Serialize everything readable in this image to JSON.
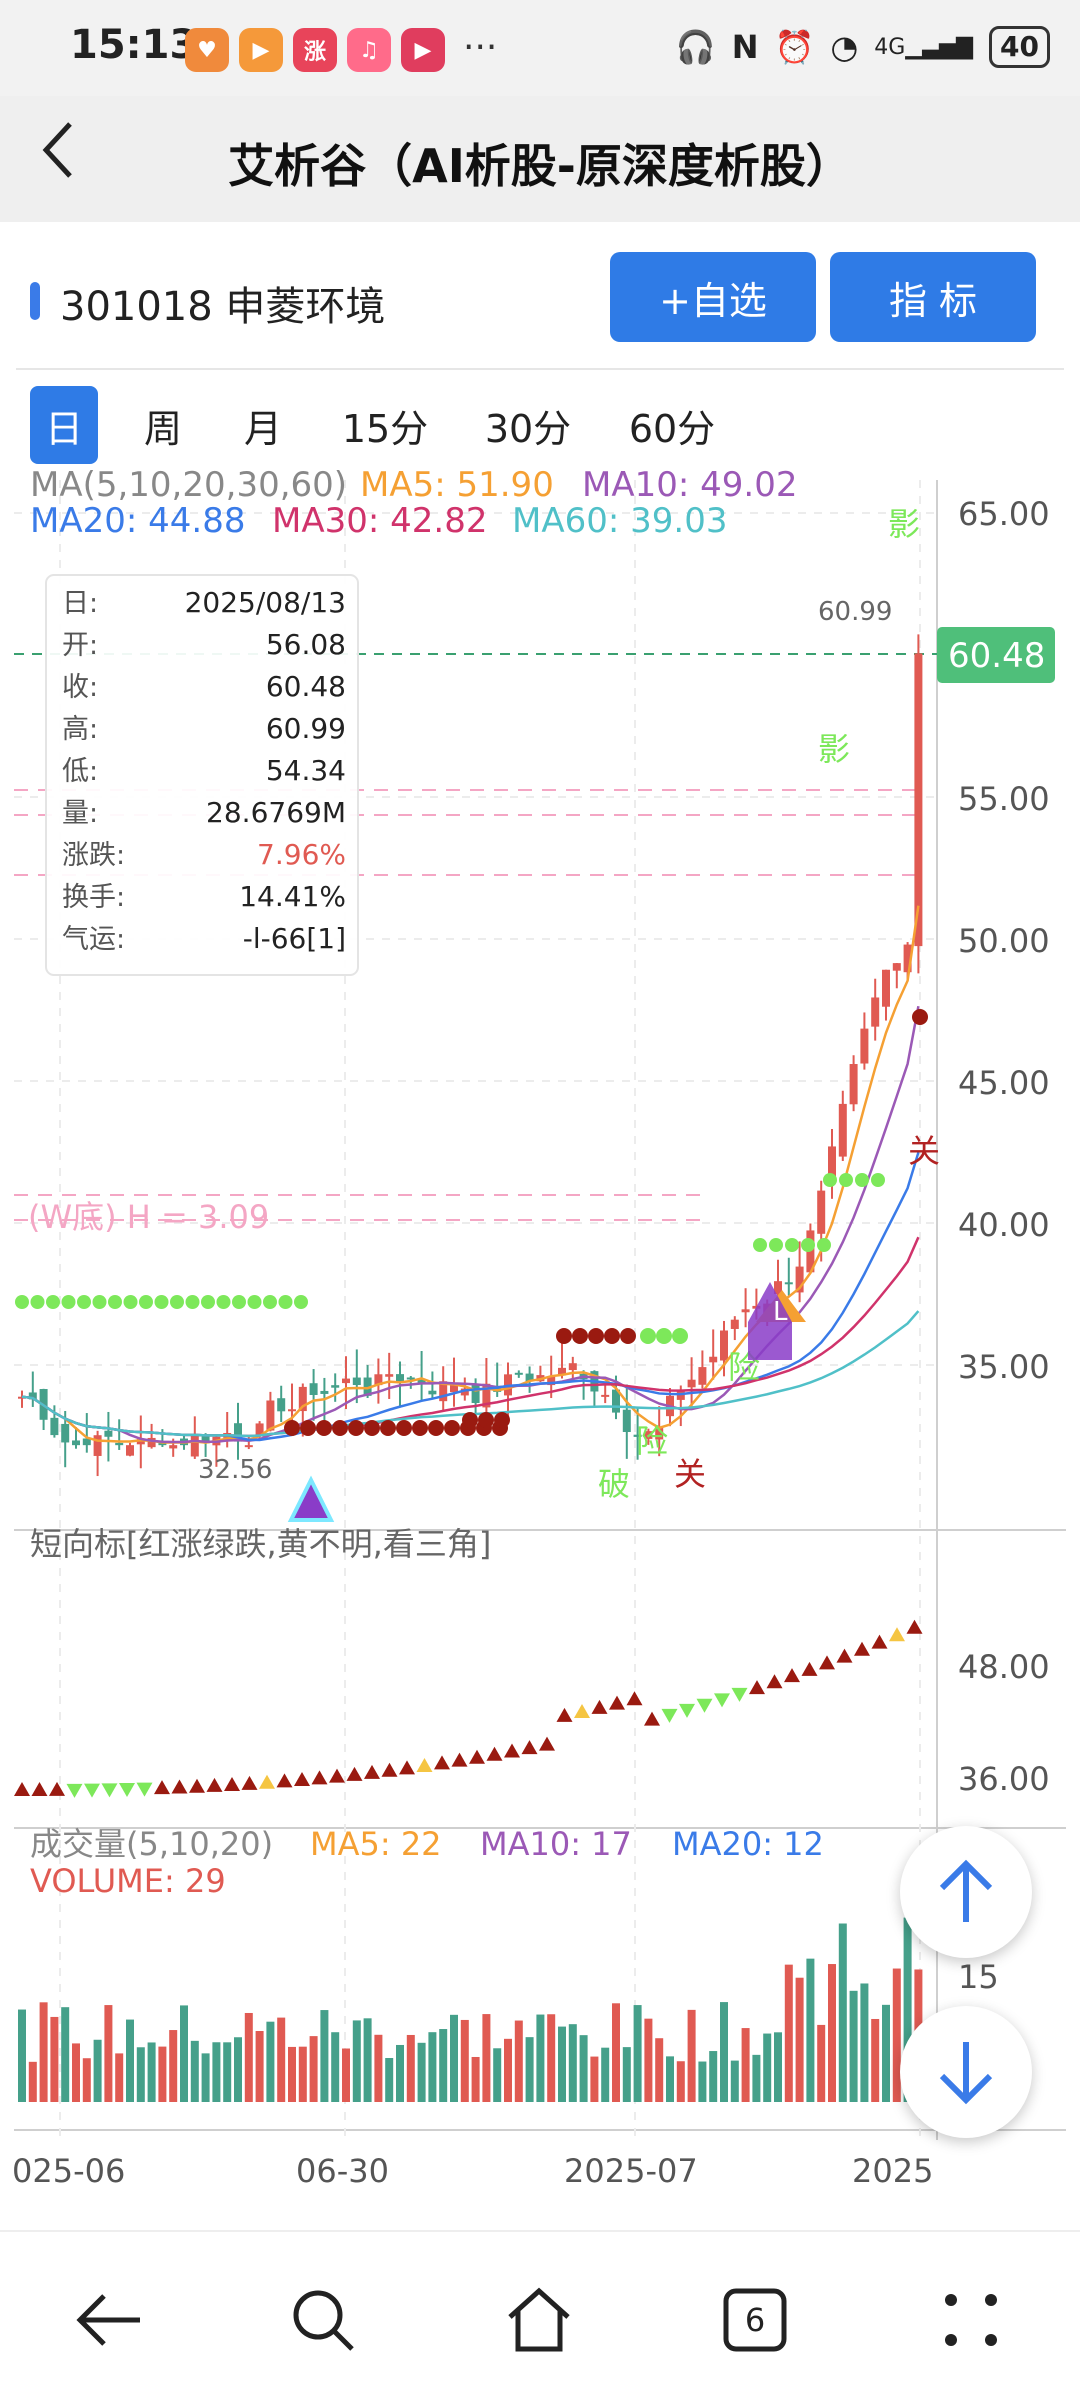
{
  "status_bar": {
    "time": "15:13",
    "battery": "40",
    "network": "4G",
    "app_icons": [
      "taobao-icon",
      "play-icon",
      "zhang-icon",
      "music-icon",
      "video-icon"
    ],
    "app_colors": [
      "#f08a3c",
      "#f5993a",
      "#e8445a",
      "#ff6b8a",
      "#e03d5e"
    ],
    "zhang_label": "涨"
  },
  "header": {
    "title": "艾析谷（AI析股-原深度析股）"
  },
  "stock": {
    "code_name": "301018 申菱环境",
    "add_watch": "+自选",
    "indicator": "指  标"
  },
  "tabs": [
    {
      "label": "日",
      "active": true
    },
    {
      "label": "周",
      "active": false
    },
    {
      "label": "月",
      "active": false
    },
    {
      "label": "15分",
      "active": false
    },
    {
      "label": "30分",
      "active": false
    },
    {
      "label": "60分",
      "active": false
    }
  ],
  "ma_legend": {
    "title": "MA(5,10,20,30,60)",
    "ma5": "MA5: 51.90",
    "ma10": "MA10: 49.02",
    "ma20": "MA20: 44.88",
    "ma30": "MA30: 42.82",
    "ma60": "MA60: 39.03"
  },
  "colors": {
    "ma5": "#f5a033",
    "ma10": "#9b59b6",
    "ma20": "#3a7be8",
    "ma30": "#d0336b",
    "ma60": "#50c0c8",
    "up": "#e05a52",
    "down": "#45a08a",
    "accent": "#2f7be6",
    "green_dot": "#7de85a",
    "dark_red": "#9a1a10"
  },
  "info_box": [
    {
      "k": "日:",
      "v": "2025/08/13"
    },
    {
      "k": "开:",
      "v": "56.08"
    },
    {
      "k": "收:",
      "v": "60.48"
    },
    {
      "k": "高:",
      "v": "60.99"
    },
    {
      "k": "低:",
      "v": "54.34"
    },
    {
      "k": "量:",
      "v": "28.6769M"
    },
    {
      "k": "涨跌:",
      "v": "7.96%"
    },
    {
      "k": "换手:",
      "v": "14.41%"
    },
    {
      "k": "气运:",
      "v": "-l-66[1]"
    }
  ],
  "price_axis": [
    "65.00",
    "55.00",
    "50.00",
    "45.00",
    "40.00",
    "35.00"
  ],
  "last_price_tag": "60.48",
  "annotations": {
    "high": "60.99",
    "low": "32.56",
    "w_bottom": "(W底) H = 3.09",
    "ying": "影",
    "xian": "险",
    "po": "破",
    "guan": "关",
    "L": "L"
  },
  "short_indicator": {
    "title": "短向标[红涨绿跌,黄不明,看三角]",
    "axis": [
      "48.00",
      "36.00"
    ]
  },
  "volume_legend": {
    "title": "成交量(5,10,20)",
    "ma5": "MA5: 22",
    "ma10": "MA10: 17",
    "ma20": "MA20: 12",
    "volume": "VOLUME: 29",
    "axis": [
      "15"
    ]
  },
  "x_axis": [
    "025-06",
    "06-30",
    "2025-07",
    "2025"
  ],
  "nav": {
    "tab_count": "6"
  }
}
